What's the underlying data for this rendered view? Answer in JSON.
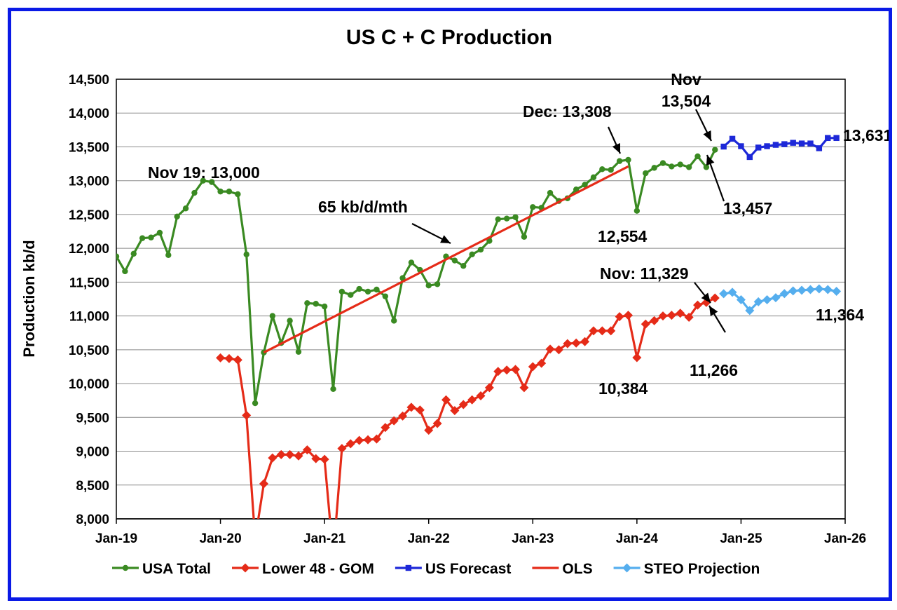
{
  "chart_data": {
    "type": "line",
    "title": "US C + C Production",
    "xlabel": "",
    "ylabel": "Production kb/d",
    "ylim": [
      8000,
      14500
    ],
    "y_ticks": [
      "8,000",
      "8,500",
      "9,000",
      "9,500",
      "10,000",
      "10,500",
      "11,000",
      "11,500",
      "12,000",
      "12,500",
      "13,000",
      "13,500",
      "14,000",
      "14,500"
    ],
    "x_ticks": [
      "Jan-19",
      "Jan-20",
      "Jan-21",
      "Jan-22",
      "Jan-23",
      "Jan-24",
      "Jan-25",
      "Jan-26"
    ],
    "x_range": [
      "Jan-19",
      "Jan-26"
    ],
    "grid": "horizontal",
    "legend_position": "bottom",
    "series": [
      {
        "name": "USA Total",
        "color": "#3a8a22",
        "marker": "circle",
        "start": "Jan-19",
        "values": [
          11880,
          11660,
          11920,
          12150,
          12160,
          12230,
          11900,
          12470,
          12590,
          12820,
          13000,
          12980,
          12840,
          12840,
          12800,
          11910,
          9710,
          10460,
          11000,
          10600,
          10930,
          10470,
          11190,
          11180,
          11140,
          9920,
          11360,
          11310,
          11400,
          11360,
          11390,
          11290,
          10930,
          11560,
          11790,
          11680,
          11450,
          11470,
          11880,
          11820,
          11740,
          11910,
          11980,
          12110,
          12430,
          12440,
          12460,
          12170,
          12610,
          12600,
          12820,
          12700,
          12740,
          12870,
          12940,
          13050,
          13170,
          13160,
          13290,
          13308,
          12554,
          13110,
          13190,
          13260,
          13210,
          13240,
          13200,
          13360,
          13200,
          13457
        ]
      },
      {
        "name": "Lower 48 - GOM",
        "color": "#e52b18",
        "marker": "diamond",
        "start": "Jan-20",
        "values": [
          10380,
          10370,
          10350,
          9530,
          7700,
          8520,
          8900,
          8950,
          8950,
          8930,
          9020,
          8890,
          8880,
          7450,
          9040,
          9110,
          9160,
          9170,
          9180,
          9350,
          9450,
          9520,
          9650,
          9610,
          9310,
          9410,
          9760,
          9600,
          9690,
          9760,
          9820,
          9940,
          10180,
          10200,
          10210,
          9940,
          10250,
          10300,
          10510,
          10500,
          10590,
          10600,
          10620,
          10780,
          10780,
          10780,
          10990,
          11010,
          10384,
          10880,
          10930,
          11000,
          11010,
          11040,
          10980,
          11160,
          11200,
          11266
        ]
      },
      {
        "name": "US Forecast",
        "color": "#1d28d8",
        "marker": "square",
        "start": "Nov-24",
        "values": [
          13504,
          13620,
          13510,
          13350,
          13490,
          13510,
          13530,
          13540,
          13560,
          13550,
          13550,
          13480,
          13631,
          13631
        ]
      },
      {
        "name": "OLS",
        "color": "#e52b18",
        "marker": "none",
        "x": [
          "Jun-20",
          "Dec-23"
        ],
        "values": [
          10460,
          13210
        ]
      },
      {
        "name": "STEO Projection",
        "color": "#55aeee",
        "marker": "diamond",
        "start": "Nov-24",
        "values": [
          11329,
          11350,
          11240,
          11080,
          11210,
          11240,
          11270,
          11330,
          11370,
          11380,
          11390,
          11400,
          11390,
          11364
        ]
      }
    ],
    "annotations": [
      {
        "id": "nov19",
        "text": "Nov 19: 13,000"
      },
      {
        "id": "dec",
        "text": "Dec: 13,308"
      },
      {
        "id": "nov_a",
        "text": "Nov"
      },
      {
        "id": "nov_b",
        "text": "13,504"
      },
      {
        "id": "us_end",
        "text": "13,631"
      },
      {
        "id": "slope",
        "text": "65 kb/d/mth"
      },
      {
        "id": "usa_last",
        "text": "13,457"
      },
      {
        "id": "jan24_total",
        "text": "12,554"
      },
      {
        "id": "nov_l48",
        "text": "Nov: 11,329"
      },
      {
        "id": "steo_end",
        "text": "11,364"
      },
      {
        "id": "l48_last",
        "text": "11,266"
      },
      {
        "id": "jan24_l48",
        "text": "10,384"
      }
    ]
  }
}
